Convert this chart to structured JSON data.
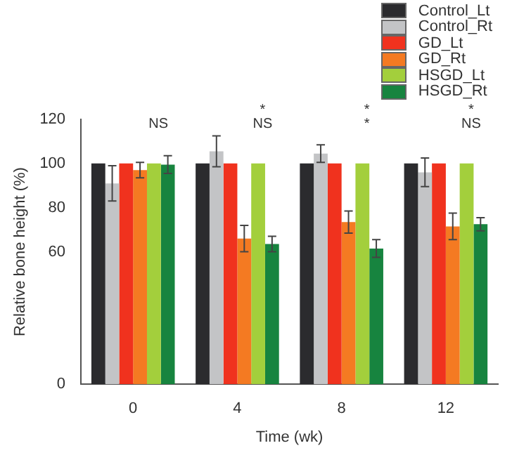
{
  "chart_data": {
    "type": "bar",
    "xlabel": "Time (wk)",
    "ylabel": "Relative bone height (%)",
    "categories": [
      "0",
      "4",
      "8",
      "12"
    ],
    "series": [
      {
        "name": "Control_Lt",
        "color": "#2b2b2e",
        "values": [
          100,
          100,
          100,
          100
        ]
      },
      {
        "name": "Control_Rt",
        "color": "#c3c4c6",
        "values": [
          91,
          105.5,
          104.5,
          96
        ],
        "errors": [
          8,
          7,
          4,
          6.5
        ]
      },
      {
        "name": "GD_Lt",
        "color": "#f0321e",
        "values": [
          100,
          100,
          100,
          100
        ]
      },
      {
        "name": "GD_Rt",
        "color": "#f47a22",
        "values": [
          97,
          66,
          73.5,
          71.5
        ],
        "errors": [
          3.5,
          6,
          5,
          6
        ]
      },
      {
        "name": "HSGD_Lt",
        "color": "#a3cf3c",
        "values": [
          100,
          100,
          100,
          100
        ]
      },
      {
        "name": "HSGD_Rt",
        "color": "#17843f",
        "values": [
          99.5,
          63.5,
          61.5,
          72.5
        ],
        "errors": [
          4,
          3.5,
          4,
          3
        ]
      }
    ],
    "ylim": [
      0,
      120
    ],
    "yticks": [
      0,
      60,
      80,
      100,
      120
    ],
    "grid": false,
    "legend": "top right",
    "annotations": [
      "NS",
      "*",
      "NS",
      "*",
      "*",
      "*",
      "NS"
    ]
  }
}
